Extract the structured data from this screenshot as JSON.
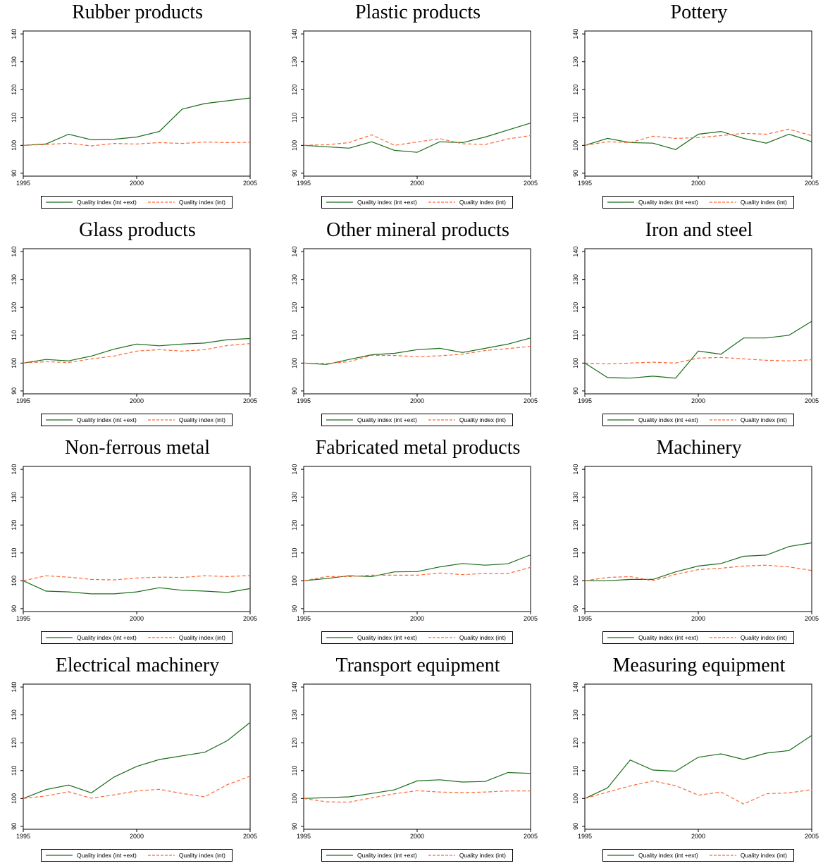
{
  "legend": {
    "series1": "Quality index (int +ext)",
    "series2": "Quality index (int)"
  },
  "colors": {
    "series1": "#1a6b1a",
    "series2": "#ff6633"
  },
  "chart_data": [
    {
      "type": "line",
      "title": "Rubber products",
      "x": [
        1995,
        1996,
        1997,
        1998,
        1999,
        2000,
        2001,
        2002,
        2003,
        2004,
        2005
      ],
      "xticks": [
        1995,
        2000,
        2005
      ],
      "ylim": [
        90,
        140
      ],
      "yticks": [
        90,
        100,
        110,
        120,
        130,
        140
      ],
      "series": [
        {
          "name": "Quality index (int +ext)",
          "values": [
            100,
            100.5,
            104,
            102,
            102.2,
            103,
            105,
            113,
            115,
            116,
            117
          ]
        },
        {
          "name": "Quality index (int)",
          "values": [
            100,
            100.3,
            100.8,
            99.8,
            100.7,
            100.5,
            101,
            100.7,
            101.2,
            101,
            101.1
          ]
        }
      ]
    },
    {
      "type": "line",
      "title": "Plastic products",
      "x": [
        1995,
        1996,
        1997,
        1998,
        1999,
        2000,
        2001,
        2002,
        2003,
        2004,
        2005
      ],
      "xticks": [
        1995,
        2000,
        2005
      ],
      "ylim": [
        90,
        140
      ],
      "yticks": [
        90,
        100,
        110,
        120,
        130,
        140
      ],
      "series": [
        {
          "name": "Quality index (int +ext)",
          "values": [
            100,
            99.5,
            99,
            101.3,
            98.2,
            97.5,
            101.3,
            101,
            103,
            105.5,
            108
          ]
        },
        {
          "name": "Quality index (int)",
          "values": [
            100,
            100.2,
            101,
            103.8,
            100,
            101.2,
            102.4,
            100.6,
            100.3,
            102.3,
            103.5
          ]
        }
      ]
    },
    {
      "type": "line",
      "title": "Pottery",
      "x": [
        1995,
        1996,
        1997,
        1998,
        1999,
        2000,
        2001,
        2002,
        2003,
        2004,
        2005
      ],
      "xticks": [
        1995,
        2000,
        2005
      ],
      "ylim": [
        90,
        140
      ],
      "yticks": [
        90,
        100,
        110,
        120,
        130,
        140
      ],
      "series": [
        {
          "name": "Quality index (int +ext)",
          "values": [
            100,
            102.5,
            101,
            100.8,
            98.5,
            104,
            105,
            102.5,
            100.8,
            104,
            101.3
          ]
        },
        {
          "name": "Quality index (int)",
          "values": [
            100,
            101.3,
            101,
            103.3,
            102.5,
            102.8,
            103.5,
            104.3,
            104,
            105.8,
            103.5
          ]
        }
      ]
    },
    {
      "type": "line",
      "title": "Glass products",
      "x": [
        1995,
        1996,
        1997,
        1998,
        1999,
        2000,
        2001,
        2002,
        2003,
        2004,
        2005
      ],
      "xticks": [
        1995,
        2000,
        2005
      ],
      "ylim": [
        90,
        140
      ],
      "yticks": [
        90,
        100,
        110,
        120,
        130,
        140
      ],
      "series": [
        {
          "name": "Quality index (int +ext)",
          "values": [
            100,
            101.3,
            100.8,
            102.5,
            105,
            106.8,
            106.2,
            106.8,
            107.2,
            108.4,
            108.8
          ]
        },
        {
          "name": "Quality index (int)",
          "values": [
            100,
            100.5,
            100.2,
            101.5,
            102.5,
            104.3,
            104.8,
            104.3,
            104.8,
            106.3,
            107
          ]
        }
      ]
    },
    {
      "type": "line",
      "title": "Other mineral products",
      "x": [
        1995,
        1996,
        1997,
        1998,
        1999,
        2000,
        2001,
        2002,
        2003,
        2004,
        2005
      ],
      "xticks": [
        1995,
        2000,
        2005
      ],
      "ylim": [
        90,
        140
      ],
      "yticks": [
        90,
        100,
        110,
        120,
        130,
        140
      ],
      "series": [
        {
          "name": "Quality index (int +ext)",
          "values": [
            100,
            99.5,
            101.3,
            103,
            103.5,
            104.8,
            105.3,
            103.8,
            105.3,
            106.8,
            109
          ]
        },
        {
          "name": "Quality index (int)",
          "values": [
            100,
            99.8,
            100.5,
            102.8,
            102.7,
            102.3,
            102.6,
            103.2,
            104.5,
            105.2,
            106
          ]
        }
      ]
    },
    {
      "type": "line",
      "title": "Iron and steel",
      "x": [
        1995,
        1996,
        1997,
        1998,
        1999,
        2000,
        2001,
        2002,
        2003,
        2004,
        2005
      ],
      "xticks": [
        1995,
        2000,
        2005
      ],
      "ylim": [
        90,
        140
      ],
      "yticks": [
        90,
        100,
        110,
        120,
        130,
        140
      ],
      "series": [
        {
          "name": "Quality index (int +ext)",
          "values": [
            100,
            94.8,
            94.6,
            95.3,
            94.6,
            104.3,
            103.2,
            109,
            109,
            110,
            115
          ]
        },
        {
          "name": "Quality index (int)",
          "values": [
            100,
            99.7,
            100,
            100.3,
            100,
            101.8,
            102,
            101.5,
            101,
            100.8,
            101.2
          ]
        }
      ]
    },
    {
      "type": "line",
      "title": "Non-ferrous metal",
      "x": [
        1995,
        1996,
        1997,
        1998,
        1999,
        2000,
        2001,
        2002,
        2003,
        2004,
        2005
      ],
      "xticks": [
        1995,
        2000,
        2005
      ],
      "ylim": [
        90,
        140
      ],
      "yticks": [
        90,
        100,
        110,
        120,
        130,
        140
      ],
      "series": [
        {
          "name": "Quality index (int +ext)",
          "values": [
            100,
            96.3,
            96,
            95.3,
            95.3,
            96,
            97.5,
            96.6,
            96.3,
            95.8,
            97.2
          ]
        },
        {
          "name": "Quality index (int)",
          "values": [
            100,
            101.8,
            101.3,
            100.5,
            100.3,
            101,
            101.3,
            101.2,
            101.8,
            101.5,
            101.9
          ]
        }
      ]
    },
    {
      "type": "line",
      "title": "Fabricated metal products",
      "x": [
        1995,
        1996,
        1997,
        1998,
        1999,
        2000,
        2001,
        2002,
        2003,
        2004,
        2005
      ],
      "xticks": [
        1995,
        2000,
        2005
      ],
      "ylim": [
        90,
        140
      ],
      "yticks": [
        90,
        100,
        110,
        120,
        130,
        140
      ],
      "series": [
        {
          "name": "Quality index (int +ext)",
          "values": [
            100,
            100.8,
            101.8,
            101.5,
            103.2,
            103.3,
            105,
            106.2,
            105.6,
            106.1,
            109.3
          ]
        },
        {
          "name": "Quality index (int)",
          "values": [
            100,
            101.5,
            101.5,
            102,
            102,
            102,
            102.8,
            102.2,
            102.6,
            102.6,
            104.8
          ]
        }
      ]
    },
    {
      "type": "line",
      "title": "Machinery",
      "x": [
        1995,
        1996,
        1997,
        1998,
        1999,
        2000,
        2001,
        2002,
        2003,
        2004,
        2005
      ],
      "xticks": [
        1995,
        2000,
        2005
      ],
      "ylim": [
        90,
        140
      ],
      "yticks": [
        90,
        100,
        110,
        120,
        130,
        140
      ],
      "series": [
        {
          "name": "Quality index (int +ext)",
          "values": [
            100,
            100,
            100.5,
            100.5,
            103.2,
            105.3,
            106.2,
            108.8,
            109.2,
            112.3,
            113.6
          ]
        },
        {
          "name": "Quality index (int)",
          "values": [
            100,
            101.2,
            101.5,
            100,
            102.3,
            104,
            104.5,
            105.3,
            105.6,
            105,
            103.7
          ]
        }
      ]
    },
    {
      "type": "line",
      "title": "Electrical machinery",
      "x": [
        1995,
        1996,
        1997,
        1998,
        1999,
        2000,
        2001,
        2002,
        2003,
        2004,
        2005
      ],
      "xticks": [
        1995,
        2000,
        2005
      ],
      "ylim": [
        90,
        140
      ],
      "yticks": [
        90,
        100,
        110,
        120,
        130,
        140
      ],
      "series": [
        {
          "name": "Quality index (int +ext)",
          "values": [
            100,
            103.2,
            104.8,
            102,
            107.7,
            111.5,
            114,
            115.3,
            116.6,
            120.8,
            127.3
          ]
        },
        {
          "name": "Quality index (int)",
          "values": [
            100,
            100.9,
            102.4,
            100.1,
            101.3,
            102.7,
            103.3,
            101.8,
            100.6,
            105,
            108
          ]
        }
      ]
    },
    {
      "type": "line",
      "title": "Transport equipment",
      "x": [
        1995,
        1996,
        1997,
        1998,
        1999,
        2000,
        2001,
        2002,
        2003,
        2004,
        2005
      ],
      "xticks": [
        1995,
        2000,
        2005
      ],
      "ylim": [
        90,
        140
      ],
      "yticks": [
        90,
        100,
        110,
        120,
        130,
        140
      ],
      "series": [
        {
          "name": "Quality index (int +ext)",
          "values": [
            100,
            100.3,
            100.6,
            101.8,
            103.1,
            106.3,
            106.7,
            105.9,
            106.1,
            109.3,
            109
          ]
        },
        {
          "name": "Quality index (int)",
          "values": [
            100,
            98.8,
            98.7,
            100.2,
            101.7,
            102.8,
            102.3,
            102.1,
            102.3,
            102.7,
            102.7
          ]
        }
      ]
    },
    {
      "type": "line",
      "title": "Measuring equipment",
      "x": [
        1995,
        1996,
        1997,
        1998,
        1999,
        2000,
        2001,
        2002,
        2003,
        2004,
        2005
      ],
      "xticks": [
        1995,
        2000,
        2005
      ],
      "ylim": [
        90,
        140
      ],
      "yticks": [
        90,
        100,
        110,
        120,
        130,
        140
      ],
      "series": [
        {
          "name": "Quality index (int +ext)",
          "values": [
            100,
            103.8,
            113.8,
            110.2,
            109.8,
            114.8,
            116,
            114,
            116.3,
            117.2,
            122.6
          ]
        },
        {
          "name": "Quality index (int)",
          "values": [
            100,
            102.3,
            104.5,
            106.3,
            104.6,
            101.2,
            102.3,
            98,
            101.7,
            102,
            103.2
          ]
        }
      ]
    }
  ]
}
